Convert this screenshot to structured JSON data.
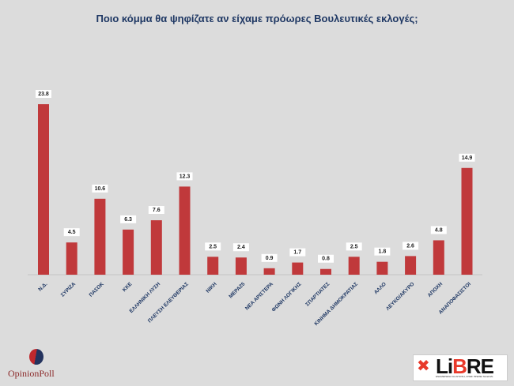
{
  "chart_data": {
    "type": "bar",
    "title": "Ποιο κόμμα θα ψηφίζατε αν είχαμε πρόωρες Βουλευτικές εκλογές;",
    "categories": [
      "Ν.Δ.",
      "ΣΥΡΙΖΑ",
      "ΠΑΣΟΚ",
      "ΚΚΕ",
      "ΕΛΛΗΝΙΚΗ ΛΥΣΗ",
      "ΠΛΕΥΣΗ ΕΛΕΥΘΕΡΙΑΣ",
      "ΝΙΚΗ",
      "ΜΕΡΑ25",
      "ΝΕΑ ΑΡΙΣΤΕΡΑ",
      "ΦΩΝΗ ΛΟΓΙΚΗΣ",
      "ΣΠΑΡΤΙΑΤΕΣ",
      "ΚΙΝΗΜΑ ΔΗΜΟΚΡΑΤΙΑΣ",
      "ΑΛΛΟ",
      "ΛΕΥΚΟ/ΑΚΥΡΟ",
      "ΑΠΟΧΗ",
      "ΑΝΑΠΟΦΑΣΙΣΤΟΙ"
    ],
    "values": [
      23.8,
      4.5,
      10.6,
      6.3,
      7.6,
      12.3,
      2.5,
      2.4,
      0.9,
      1.7,
      0.8,
      2.5,
      1.8,
      2.6,
      4.8,
      14.9
    ],
    "data_labels": [
      "23.8",
      "4.5",
      "10.6",
      "6.3",
      "7.6",
      "12.3",
      "2.5",
      "2.4",
      "0.9",
      "1.7",
      "0.8",
      "2.5",
      "1.8",
      "2.6",
      "4.8",
      "14.9"
    ],
    "ylim": [
      0,
      24
    ],
    "grid": false,
    "bar_color": "#c0393b"
  },
  "logos": {
    "left": "OpinionPoll",
    "right": "LiBRE",
    "right_tagline": "ΕΝΗΜΕΡΩΣΗ ΚΑΙ ΑΠΟΨΗ, ΟΠΩΣ ΠΡΕΠΕΙ ΝΑ ΕΙΝΑΙ."
  }
}
